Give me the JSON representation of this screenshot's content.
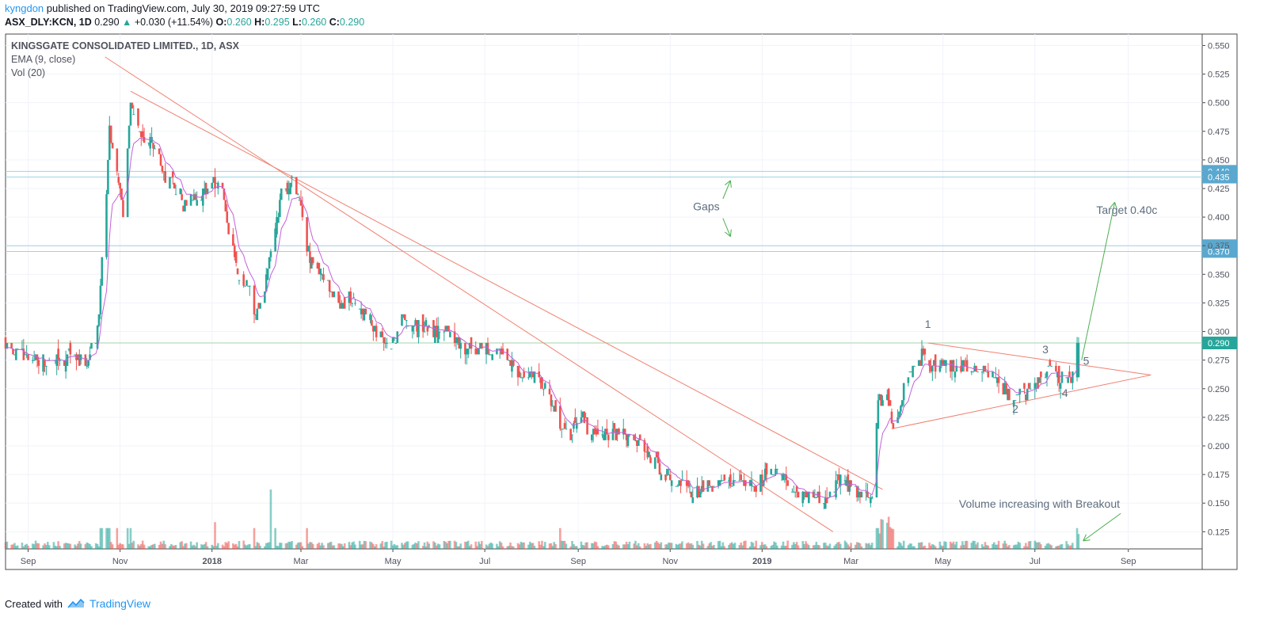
{
  "header": {
    "author": "kyngdon",
    "published": "published on TradingView.com, July 30, 2019 09:27:59 UTC",
    "symbol": "ASX_DLY:KCN, 1D",
    "last": "0.290",
    "change": "+0.030 (+11.54%)",
    "open_label": "O:",
    "open": "0.260",
    "high_label": "H:",
    "high": "0.295",
    "low_label": "L:",
    "low": "0.260",
    "close_label": "C:",
    "close": "0.290"
  },
  "legend": {
    "title": "KINGSGATE CONSOLIDATED LIMITED., 1D, ASX",
    "ema": "EMA (9, close)",
    "vol": "Vol (20)"
  },
  "footer": {
    "created_with": "Created with",
    "brand": "TradingView"
  },
  "colors": {
    "up": "#26a69a",
    "down": "#ef5350",
    "ema": "#c55fdb",
    "trend": "#f08070",
    "hline": "#9fd3e6",
    "last": "#26a69a",
    "arrow": "#4caf50",
    "text": "#5d6d7e"
  },
  "chart_data": {
    "type": "candlestick",
    "title": "KINGSGATE CONSOLIDATED LIMITED., 1D, ASX",
    "ylim": [
      0.11,
      0.56
    ],
    "y_ticks": [
      "0.125",
      "0.150",
      "0.175",
      "0.200",
      "0.225",
      "0.250",
      "0.275",
      "0.300",
      "0.325",
      "0.350",
      "0.375",
      "0.400",
      "0.425",
      "0.450",
      "0.475",
      "0.500",
      "0.525",
      "0.550"
    ],
    "x_ticks": [
      {
        "label": "Sep",
        "date": "2017-09-01"
      },
      {
        "label": "Nov",
        "date": "2017-11-01"
      },
      {
        "label": "2018",
        "date": "2018-01-01",
        "bold": true
      },
      {
        "label": "Mar",
        "date": "2018-03-01"
      },
      {
        "label": "May",
        "date": "2018-05-01"
      },
      {
        "label": "Jul",
        "date": "2018-07-01"
      },
      {
        "label": "Sep",
        "date": "2018-09-01"
      },
      {
        "label": "Nov",
        "date": "2018-11-01"
      },
      {
        "label": "2019",
        "date": "2019-01-01",
        "bold": true
      },
      {
        "label": "Mar",
        "date": "2019-03-01"
      },
      {
        "label": "May",
        "date": "2019-05-01"
      },
      {
        "label": "Jul",
        "date": "2019-07-01"
      },
      {
        "label": "Sep",
        "date": "2019-09-01"
      }
    ],
    "x_range": [
      "2017-08-17",
      "2019-10-20"
    ],
    "close_path": [
      [
        "2017-08-17",
        0.29
      ],
      [
        "2017-08-28",
        0.28
      ],
      [
        "2017-09-15",
        0.272
      ],
      [
        "2017-10-01",
        0.278
      ],
      [
        "2017-10-10",
        0.272
      ],
      [
        "2017-10-17",
        0.3
      ],
      [
        "2017-10-23",
        0.42
      ],
      [
        "2017-10-25",
        0.48
      ],
      [
        "2017-10-30",
        0.44
      ],
      [
        "2017-11-03",
        0.4
      ],
      [
        "2017-11-06",
        0.46
      ],
      [
        "2017-11-08",
        0.5
      ],
      [
        "2017-11-14",
        0.47
      ],
      [
        "2017-11-22",
        0.465
      ],
      [
        "2017-11-29",
        0.44
      ],
      [
        "2017-12-06",
        0.43
      ],
      [
        "2017-12-14",
        0.41
      ],
      [
        "2017-12-21",
        0.42
      ],
      [
        "2017-12-28",
        0.425
      ],
      [
        "2018-01-03",
        0.43
      ],
      [
        "2018-01-08",
        0.42
      ],
      [
        "2018-01-13",
        0.38
      ],
      [
        "2018-01-18",
        0.35
      ],
      [
        "2018-01-25",
        0.34
      ],
      [
        "2018-01-30",
        0.31
      ],
      [
        "2018-02-05",
        0.34
      ],
      [
        "2018-02-10",
        0.375
      ],
      [
        "2018-02-16",
        0.42
      ],
      [
        "2018-02-23",
        0.43
      ],
      [
        "2018-03-01",
        0.41
      ],
      [
        "2018-03-05",
        0.37
      ],
      [
        "2018-03-12",
        0.36
      ],
      [
        "2018-03-19",
        0.34
      ],
      [
        "2018-03-26",
        0.32
      ],
      [
        "2018-04-02",
        0.33
      ],
      [
        "2018-04-09",
        0.32
      ],
      [
        "2018-04-16",
        0.31
      ],
      [
        "2018-04-25",
        0.29
      ],
      [
        "2018-05-01",
        0.29
      ],
      [
        "2018-05-08",
        0.31
      ],
      [
        "2018-05-17",
        0.305
      ],
      [
        "2018-05-28",
        0.3
      ],
      [
        "2018-06-06",
        0.3
      ],
      [
        "2018-06-15",
        0.288
      ],
      [
        "2018-06-25",
        0.285
      ],
      [
        "2018-07-05",
        0.285
      ],
      [
        "2018-07-15",
        0.278
      ],
      [
        "2018-07-25",
        0.26
      ],
      [
        "2018-08-05",
        0.26
      ],
      [
        "2018-08-14",
        0.24
      ],
      [
        "2018-08-21",
        0.215
      ],
      [
        "2018-08-27",
        0.21
      ],
      [
        "2018-09-02",
        0.23
      ],
      [
        "2018-09-08",
        0.21
      ],
      [
        "2018-09-20",
        0.21
      ],
      [
        "2018-10-01",
        0.21
      ],
      [
        "2018-10-10",
        0.205
      ],
      [
        "2018-10-18",
        0.195
      ],
      [
        "2018-10-26",
        0.178
      ],
      [
        "2018-11-05",
        0.17
      ],
      [
        "2018-11-15",
        0.158
      ],
      [
        "2018-11-28",
        0.165
      ],
      [
        "2018-12-10",
        0.168
      ],
      [
        "2018-12-20",
        0.165
      ],
      [
        "2018-12-28",
        0.165
      ],
      [
        "2019-01-05",
        0.18
      ],
      [
        "2019-01-14",
        0.175
      ],
      [
        "2019-01-22",
        0.155
      ],
      [
        "2019-02-01",
        0.16
      ],
      [
        "2019-02-11",
        0.15
      ],
      [
        "2019-02-16",
        0.158
      ],
      [
        "2019-02-21",
        0.175
      ],
      [
        "2019-02-28",
        0.165
      ],
      [
        "2019-03-08",
        0.155
      ],
      [
        "2019-03-15",
        0.15
      ],
      [
        "2019-03-19",
        0.24
      ],
      [
        "2019-03-25",
        0.245
      ],
      [
        "2019-03-29",
        0.215
      ],
      [
        "2019-04-03",
        0.24
      ],
      [
        "2019-04-09",
        0.265
      ],
      [
        "2019-04-18",
        0.28
      ],
      [
        "2019-04-25",
        0.268
      ],
      [
        "2019-05-06",
        0.27
      ],
      [
        "2019-05-20",
        0.268
      ],
      [
        "2019-06-01",
        0.265
      ],
      [
        "2019-06-08",
        0.255
      ],
      [
        "2019-06-15",
        0.24
      ],
      [
        "2019-06-25",
        0.245
      ],
      [
        "2019-07-03",
        0.258
      ],
      [
        "2019-07-10",
        0.27
      ],
      [
        "2019-07-16",
        0.258
      ],
      [
        "2019-07-22",
        0.258
      ],
      [
        "2019-07-26",
        0.262
      ],
      [
        "2019-07-30",
        0.29
      ]
    ],
    "indicators": [
      "EMA (9, close)",
      "Vol (20)"
    ],
    "last_price": 0.29,
    "price_labels": [
      0.44,
      0.435,
      0.375,
      0.37,
      0.29
    ],
    "horizontal_lines": [
      0.44,
      0.435,
      0.375,
      0.37,
      0.29
    ],
    "trend_lines": [
      {
        "from": [
          "2017-10-22",
          0.54
        ],
        "to": [
          "2019-02-17",
          0.125
        ]
      },
      {
        "from": [
          "2017-11-08",
          0.51
        ],
        "to": [
          "2019-03-22",
          0.162
        ]
      },
      {
        "from": [
          "2019-04-21",
          0.29
        ],
        "to": [
          "2019-09-16",
          0.262
        ]
      },
      {
        "from": [
          "2019-03-28",
          0.215
        ],
        "to": [
          "2019-09-16",
          0.262
        ]
      }
    ],
    "volume_spikes": [
      {
        "date": "2017-10-22",
        "size": 0.35
      },
      {
        "date": "2018-01-03",
        "size": 0.45
      },
      {
        "date": "2018-02-09",
        "size": 1.0
      },
      {
        "date": "2019-03-17",
        "size": 0.6
      },
      {
        "date": "2019-07-30",
        "size": 0.25
      }
    ],
    "annotations": [
      {
        "text": "Gaps",
        "date": "2018-11-25",
        "y": 0.406
      },
      {
        "text": "Target 0.40c",
        "date": "2019-08-31",
        "y": 0.403
      },
      {
        "text": "1",
        "date": "2019-04-21",
        "y": 0.303
      },
      {
        "text": "2",
        "date": "2019-06-18",
        "y": 0.229
      },
      {
        "text": "3",
        "date": "2019-07-08",
        "y": 0.281
      },
      {
        "text": "4",
        "date": "2019-07-21",
        "y": 0.243
      },
      {
        "text": "5",
        "date": "2019-08-04",
        "y": 0.271
      },
      {
        "text": "Volume increasing with Breakout",
        "date": "2019-07-04",
        "y": 0.146
      }
    ],
    "arrows": [
      {
        "from": [
          "2018-12-06",
          0.416
        ],
        "to": [
          "2018-12-11",
          0.432
        ]
      },
      {
        "from": [
          "2018-12-06",
          0.399
        ],
        "to": [
          "2018-12-11",
          0.383
        ]
      },
      {
        "from": [
          "2019-08-01",
          0.275
        ],
        "to": [
          "2019-08-23",
          0.413
        ]
      },
      {
        "from": [
          "2019-08-27",
          0.141
        ],
        "to": [
          "2019-08-02",
          0.117
        ]
      }
    ]
  }
}
